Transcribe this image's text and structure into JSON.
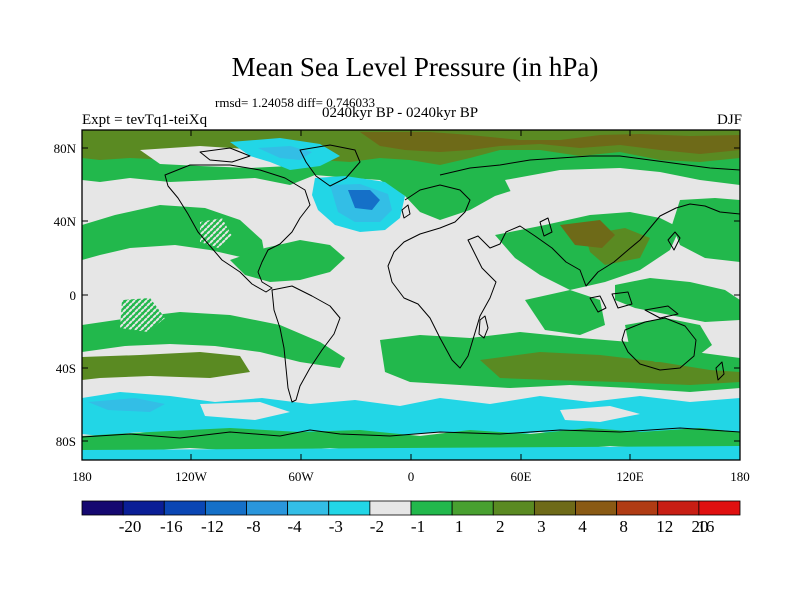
{
  "title": "Mean Sea Level Pressure (in hPa)",
  "subtitle": "rmsd= 1.24058 diff= 0.746033",
  "left_string": "Expt = tevTq1-teiXq",
  "center_string": "0240kyr BP - 0240kyr BP",
  "right_string": "DJF",
  "lat_labels": [
    "80N",
    "40N",
    "0",
    "40S",
    "80S"
  ],
  "lon_labels": [
    "180",
    "120W",
    "60W",
    "0",
    "60E",
    "120E",
    "180"
  ],
  "colorbar": {
    "colors": [
      "#150870",
      "#0a1e96",
      "#0a46b4",
      "#1570c8",
      "#2a96dc",
      "#33bee6",
      "#22d6e6",
      "#e6e6e6",
      "#22b84c",
      "#48a030",
      "#5a8a22",
      "#6e6a18",
      "#8a5a14",
      "#b03c14",
      "#c81e14",
      "#e01010"
    ],
    "labels": [
      "-20",
      "-16",
      "-12",
      "-8",
      "-4",
      "-3",
      "-2",
      "-1",
      "1",
      "2",
      "3",
      "4",
      "8",
      "12",
      "16",
      "20"
    ]
  },
  "palette": {
    "white": "#e6e6e6",
    "green": "#22b84c",
    "olive": "#5a8a22",
    "brown": "#6e6a18",
    "cyan": "#22d6e6",
    "lightblue": "#33bee6",
    "blue": "#1570c8"
  }
}
